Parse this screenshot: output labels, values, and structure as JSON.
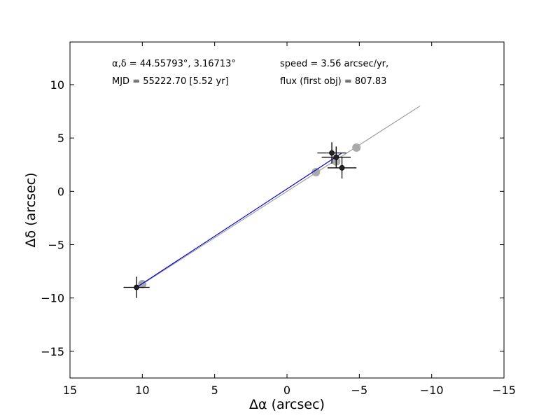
{
  "chart_data": {
    "type": "scatter",
    "xlabel": "Δα (arcsec)",
    "ylabel": "Δδ (arcsec)",
    "xlim": [
      15,
      -15
    ],
    "ylim": [
      -17.5,
      14
    ],
    "x_ticks": [
      15,
      10,
      5,
      0,
      -5,
      -10,
      -15
    ],
    "x_tick_labels": [
      "15",
      "10",
      "5",
      "0",
      "−5",
      "−10",
      "−15"
    ],
    "y_ticks": [
      -15,
      -10,
      -5,
      0,
      5,
      10
    ],
    "y_tick_labels": [
      "−15",
      "−10",
      "−5",
      "0",
      "5",
      "10"
    ],
    "grid": false,
    "annotations": {
      "coords": "α,δ = 44.55793°, 3.16713°",
      "mjd": "MJD = 55222.70 [5.52 yr]",
      "speed": "speed = 3.56 arcsec/yr,",
      "flux": "flux (first obj) = 807.83"
    },
    "observations": [
      {
        "x": 10.4,
        "y": -9.0,
        "xerr": 0.9,
        "yerr": 1.0
      },
      {
        "x": -3.1,
        "y": 3.6,
        "xerr": 1.0,
        "yerr": 1.0
      },
      {
        "x": -3.4,
        "y": 3.2,
        "xerr": 1.0,
        "yerr": 1.0
      },
      {
        "x": -3.8,
        "y": 2.2,
        "xerr": 1.0,
        "yerr": 1.0
      }
    ],
    "predicted_points": [
      {
        "x": 10.0,
        "y": -8.7
      },
      {
        "x": -2.0,
        "y": 1.8
      },
      {
        "x": -3.4,
        "y": 2.8
      },
      {
        "x": -4.8,
        "y": 4.1
      }
    ],
    "fit_line": {
      "x": [
        10.0,
        -9.2
      ],
      "y": [
        -8.7,
        8.0
      ]
    },
    "motion_vector": {
      "x": [
        10.4,
        -3.8
      ],
      "y": [
        -9.0,
        3.6
      ]
    },
    "colors": {
      "observation": "#222222",
      "errorbar": "#000000",
      "predicted": "#aaaaaa",
      "fit_line": "#a0a0a0",
      "motion_vector": "#0000cc"
    }
  }
}
